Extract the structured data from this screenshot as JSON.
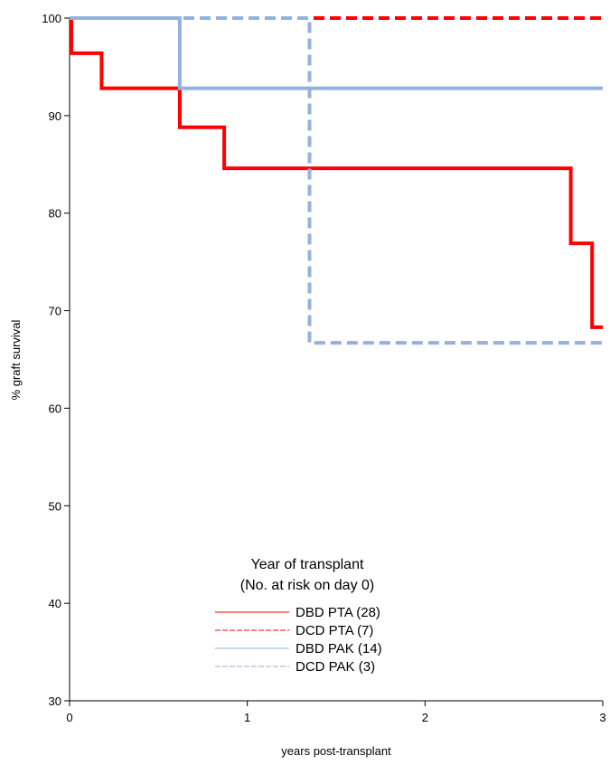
{
  "chart_data": {
    "type": "line",
    "title": "",
    "xlabel": "years post-transplant",
    "ylabel": "% graft survival",
    "xlim": [
      0,
      3
    ],
    "ylim": [
      30,
      100
    ],
    "xticks": [
      0,
      1,
      2,
      3
    ],
    "yticks": [
      30,
      40,
      50,
      60,
      70,
      80,
      90,
      100
    ],
    "grid": false,
    "legend": {
      "position": "bottom-center",
      "title_line1": "Year of transplant",
      "title_line2": "(No. at risk on day 0)"
    },
    "series": [
      {
        "name": "DBD PTA (28)",
        "color": "#ff0000",
        "style": "solid",
        "step": true,
        "x": [
          0,
          0.01,
          0.18,
          0.62,
          0.87,
          2.82,
          2.94,
          3.0
        ],
        "y": [
          100,
          96.4,
          92.8,
          88.8,
          84.6,
          76.9,
          68.3,
          68.3
        ]
      },
      {
        "name": "DCD PTA (7)",
        "color": "#ff0000",
        "style": "dashed",
        "step": true,
        "x": [
          0,
          3.0
        ],
        "y": [
          100,
          100
        ]
      },
      {
        "name": "DBD PAK (14)",
        "color": "#94b1df",
        "style": "solid",
        "step": true,
        "x": [
          0,
          0.62,
          3.0
        ],
        "y": [
          100,
          92.8,
          92.8
        ]
      },
      {
        "name": "DCD PAK (3)",
        "color": "#94b1df",
        "style": "dashed",
        "step": true,
        "x": [
          0,
          1.35,
          3.0
        ],
        "y": [
          100,
          66.7,
          66.7
        ]
      }
    ]
  }
}
